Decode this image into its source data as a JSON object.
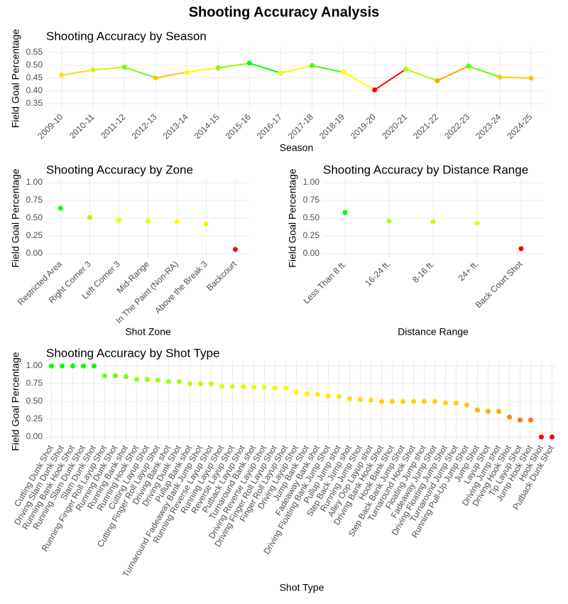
{
  "title": "Shooting Accuracy Analysis",
  "chart_data": [
    {
      "type": "line",
      "title": "Shooting Accuracy by Season",
      "x_label": "Season",
      "y_label": "Field Goal Percentage",
      "categories": [
        "2009-10",
        "2010-11",
        "2011-12",
        "2012-13",
        "2013-14",
        "2014-15",
        "2015-16",
        "2016-17",
        "2017-18",
        "2018-19",
        "2019-20",
        "2020-21",
        "2021-22",
        "2022-23",
        "2023-24",
        "2024-25"
      ],
      "values": [
        0.462,
        0.482,
        0.493,
        0.451,
        0.473,
        0.49,
        0.508,
        0.47,
        0.499,
        0.473,
        0.404,
        0.485,
        0.44,
        0.497,
        0.454,
        0.45
      ],
      "ylim": [
        0.325,
        0.572
      ],
      "yticks": [
        0.35,
        {
          "value": 0.4,
          "label": "0.40"
        },
        0.45,
        {
          "value": 0.5,
          "label": "0.50"
        },
        0.55
      ],
      "grid": true,
      "color_scale": [
        "#ff0000",
        "#ffa500",
        "#ffff00",
        "#00ff00"
      ]
    },
    {
      "type": "scatter",
      "title": "Shooting Accuracy by Zone",
      "x_label": "Shot Zone",
      "y_label": "Field Goal Percentage",
      "categories": [
        "Restricted Area",
        "Right Corner 3",
        "Left Corner 3",
        "Mid-Range",
        "In The Paint (Non-RA)",
        "Above the Break 3",
        "Backcourt"
      ],
      "values": [
        0.64,
        0.51,
        0.47,
        0.46,
        0.45,
        0.42,
        0.06
      ],
      "ylim": [
        -0.05,
        1.05
      ],
      "yticks": [
        {
          "value": 0,
          "label": "0.00"
        },
        {
          "value": 0.25,
          "label": "0.25"
        },
        {
          "value": 0.5,
          "label": "0.50"
        },
        {
          "value": 0.75,
          "label": "0.75"
        },
        {
          "value": 1,
          "label": "1.00"
        }
      ],
      "grid": true,
      "color_scale": [
        "#ff0000",
        "#ffa500",
        "#ffff00",
        "#00ff00"
      ]
    },
    {
      "type": "scatter",
      "title": "Shooting Accuracy by Distance Range",
      "x_label": "Distance Range",
      "y_label": "Field Goal Percentage",
      "categories": [
        "Less Than 8 ft.",
        "16-24 ft.",
        "8-16 ft.",
        "24+ ft.",
        "Back Court Shot"
      ],
      "values": [
        0.58,
        0.46,
        0.45,
        0.43,
        0.07
      ],
      "ylim": [
        -0.05,
        1.05
      ],
      "yticks": [
        {
          "value": 0,
          "label": "0.00"
        },
        {
          "value": 0.25,
          "label": "0.25"
        },
        {
          "value": 0.5,
          "label": "0.50"
        },
        {
          "value": 0.75,
          "label": "0.75"
        },
        {
          "value": 1,
          "label": "1.00"
        }
      ],
      "grid": true,
      "color_scale": [
        "#ff0000",
        "#ffa500",
        "#ffff00",
        "#00ff00"
      ]
    },
    {
      "type": "scatter",
      "title": "Shooting Accuracy by Shot Type",
      "x_label": "Shot Type",
      "y_label": "Field Goal Percentage",
      "categories": [
        "Cutting Dunk Shot",
        "Driving Slam Dunk Shot",
        "Running Bank Hook Shot",
        "Running Slam Dunk Shot",
        "Slam Dunk Shot",
        "Running Finger Roll Layup Shot",
        "Running Dunk Shot",
        "Running Bank shot",
        "Running Hook Shot",
        "Cutting Layup Shot",
        "Cutting Finger Roll Layup Shot",
        "Driving Bank shot",
        "Driving Dunk Shot",
        "Pullup Bank shot",
        "Turnaround Fadeaway Bank Jump Shot",
        "Running Reverse Layup Shot",
        "Running Layup Shot",
        "Reverse Layup Shot",
        "Putback Layup Shot",
        "Turnaround Bank shot",
        "Driving Reverse Layup Shot",
        "Driving Finger Roll Layup Shot",
        "Finger Roll Layup Shot",
        "Driving Layup Shot",
        "Jump Bank Shot",
        "Fadeaway Bank shot",
        "Driving Floating Bank Jump Shot",
        "Pullup Jump shot",
        "Step Back Jump shot",
        "Running Jump Shot",
        "Alley Oop Layup shot",
        "Driving Bank Hook Shot",
        "Hook Bank Shot",
        "Step Back Bank Jump Shot",
        "Turnaround Hook Shot",
        "Floating Jump shot",
        "Fadeaway Jump Shot",
        "Driving Floating Jump Shot",
        "Turnaround Jump Shot",
        "Running Pull-Up Jump Shot",
        "Jump Shot",
        "Layup Shot",
        "Driving Jump shot",
        "Driving Hook Shot",
        "Tip Layup Shot",
        "Jump Hook Shot",
        "Hook Shot",
        "Putback Dunk Shot"
      ],
      "values": [
        1,
        1,
        1,
        1,
        1,
        0.86,
        0.86,
        0.85,
        0.81,
        0.81,
        0.8,
        0.78,
        0.78,
        0.75,
        0.75,
        0.75,
        0.71,
        0.71,
        0.71,
        0.7,
        0.7,
        0.69,
        0.69,
        0.63,
        0.61,
        0.6,
        0.58,
        0.57,
        0.54,
        0.53,
        0.52,
        0.5,
        0.5,
        0.5,
        0.5,
        0.5,
        0.5,
        0.48,
        0.48,
        0.45,
        0.38,
        0.36,
        0.36,
        0.28,
        0.24,
        0.24,
        0,
        0
      ],
      "ylim": [
        -0.05,
        1.05
      ],
      "yticks": [
        {
          "value": 0,
          "label": "0.00"
        },
        {
          "value": 0.25,
          "label": "0.25"
        },
        {
          "value": 0.5,
          "label": "0.50"
        },
        {
          "value": 0.75,
          "label": "0.75"
        },
        {
          "value": 1,
          "label": "1.00"
        }
      ],
      "grid": true,
      "color_scale": [
        "#ff0000",
        "#ffa500",
        "#ffff00",
        "#00ff00"
      ]
    }
  ]
}
